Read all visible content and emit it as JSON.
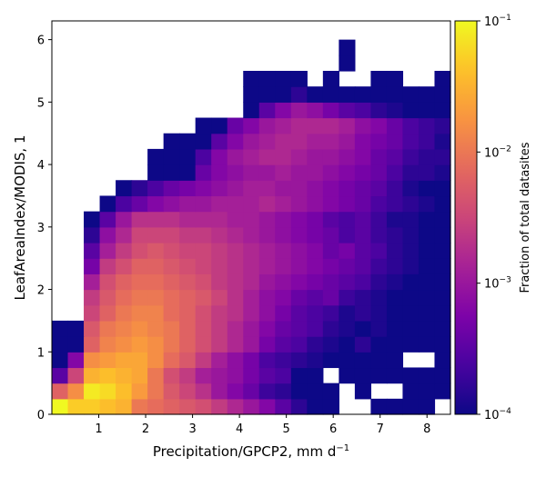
{
  "chart_data": {
    "type": "heatmap",
    "xlabel": "Precipitation/GPCP2,  mm d",
    "xlabel_superscript": "−1",
    "ylabel": "LeafAreaIndex/MODIS,  1",
    "xlim": [
      0,
      8.5
    ],
    "ylim": [
      0,
      6.3
    ],
    "x_ticks": [
      1,
      2,
      3,
      4,
      5,
      6,
      7,
      8
    ],
    "y_ticks": [
      0,
      1,
      2,
      3,
      4,
      5,
      6
    ],
    "x_bin_width": 0.34,
    "y_bin_height": 0.25,
    "colorbar": {
      "label": "Fraction of total datasites",
      "scale": "log",
      "colormap": "plasma",
      "range": [
        0.0001,
        0.1
      ],
      "ticks": [
        {
          "value": 0.0001,
          "base": "10",
          "exp": "−4"
        },
        {
          "value": 0.001,
          "base": "10",
          "exp": "−3"
        },
        {
          "value": 0.01,
          "base": "10",
          "exp": "−2"
        },
        {
          "value": 0.1,
          "base": "10",
          "exp": "−1"
        }
      ]
    },
    "rows_bottom_to_top": [
      [
        -1.0,
        -1.3,
        -1.3,
        -1.4,
        -1.5,
        -2.0,
        -2.1,
        -2.2,
        -2.3,
        -2.4,
        -2.6,
        -2.8,
        -3.0,
        -3.2,
        -3.5,
        -3.8,
        -4,
        -4,
        null,
        null,
        -4,
        -4,
        -4,
        -4,
        null
      ],
      [
        -2.2,
        -1.8,
        -1.1,
        -1.2,
        -1.4,
        -1.7,
        -2.0,
        -2.3,
        -2.5,
        -2.7,
        -3.0,
        -3.2,
        -3.4,
        -3.7,
        -3.8,
        -4,
        -4,
        -4,
        null,
        -4,
        null,
        null,
        -4,
        -4,
        -4
      ],
      [
        -3.5,
        -2.5,
        -1.5,
        -1.4,
        -1.5,
        -1.6,
        -2.0,
        -2.4,
        -2.6,
        -2.9,
        -3.0,
        -3.1,
        -3.3,
        -3.5,
        -3.6,
        -4,
        -4,
        null,
        -4,
        -4,
        -4,
        -4,
        -4,
        -4,
        -4
      ],
      [
        -4,
        -3.2,
        -1.8,
        -1.7,
        -1.6,
        -1.6,
        -1.8,
        -2.1,
        -2.3,
        -2.6,
        -2.9,
        -3.1,
        -3.3,
        -3.6,
        -3.7,
        -3.8,
        -3.9,
        -4,
        -4,
        -4,
        -4,
        -4,
        null,
        null,
        -4
      ],
      [
        -4,
        -4,
        -2.2,
        -1.9,
        -1.8,
        -1.7,
        -1.8,
        -2.0,
        -2.2,
        -2.4,
        -2.6,
        -2.8,
        -3.0,
        -3.3,
        -3.5,
        -3.6,
        -3.8,
        -3.9,
        -4,
        -3.8,
        -4,
        -4,
        -4,
        -4,
        -4
      ],
      [
        -4,
        -4,
        -2.3,
        -2.0,
        -1.9,
        -1.8,
        -1.9,
        -2.0,
        -2.2,
        -2.4,
        -2.6,
        -2.8,
        -3.0,
        -3.2,
        -3.4,
        -3.5,
        -3.6,
        -3.8,
        -3.9,
        -4,
        -3.9,
        -4,
        -4,
        -4,
        -4
      ],
      [
        null,
        null,
        -2.5,
        -2.2,
        -2.0,
        -1.9,
        -1.9,
        -2.1,
        -2.2,
        -2.4,
        -2.6,
        -2.7,
        -2.9,
        -3.1,
        -3.3,
        -3.5,
        -3.6,
        -3.7,
        -3.9,
        -3.8,
        -3.9,
        -4,
        -4,
        -4,
        -4
      ],
      [
        null,
        null,
        -2.6,
        -2.3,
        -2.1,
        -2.0,
        -2.0,
        -2.1,
        -2.2,
        -2.3,
        -2.5,
        -2.7,
        -2.9,
        -3.1,
        -3.2,
        -3.4,
        -3.5,
        -3.4,
        -3.7,
        -3.8,
        -3.9,
        -4,
        -4,
        -4,
        -4
      ],
      [
        null,
        null,
        -2.9,
        -2.4,
        -2.2,
        -2.1,
        -2.1,
        -2.2,
        -2.3,
        -2.4,
        -2.6,
        -2.7,
        -2.8,
        -3.0,
        -3.1,
        -3.2,
        -3.3,
        -3.4,
        -3.5,
        -3.6,
        -3.8,
        -3.9,
        -4,
        -4,
        -4
      ],
      [
        null,
        null,
        -3.3,
        -2.6,
        -2.4,
        -2.2,
        -2.2,
        -2.3,
        -2.4,
        -2.5,
        -2.6,
        -2.7,
        -2.8,
        -2.9,
        -3.0,
        -3.1,
        -3.2,
        -3.3,
        -3.4,
        -3.5,
        -3.7,
        -3.8,
        -3.9,
        -4,
        -4
      ],
      [
        null,
        null,
        -3.5,
        -2.9,
        -2.6,
        -2.4,
        -2.3,
        -2.4,
        -2.5,
        -2.5,
        -2.6,
        -2.7,
        -2.8,
        -2.9,
        -3.0,
        -3.1,
        -3.2,
        -3.4,
        -3.3,
        -3.5,
        -3.6,
        -3.8,
        -3.9,
        -4,
        -4
      ],
      [
        null,
        null,
        -3.8,
        -3.1,
        -2.8,
        -2.5,
        -2.5,
        -2.5,
        -2.6,
        -2.6,
        -2.7,
        -2.8,
        -2.9,
        -3.0,
        -3.1,
        -3.2,
        -3.3,
        -3.4,
        -3.6,
        -3.5,
        -3.7,
        -3.8,
        -3.9,
        -4,
        -4
      ],
      [
        null,
        null,
        -4,
        -3.5,
        -3.0,
        -2.7,
        -2.7,
        -2.7,
        -2.8,
        -2.8,
        -2.8,
        -2.9,
        -2.9,
        -3.0,
        -3.1,
        -3.2,
        -3.3,
        -3.5,
        -3.6,
        -3.5,
        -3.7,
        -3.9,
        -3.9,
        -4,
        -4
      ],
      [
        null,
        null,
        null,
        -4,
        -3.6,
        -3.4,
        -3.2,
        -3.1,
        -3.0,
        -3.0,
        -2.9,
        -2.9,
        -2.9,
        -2.8,
        -2.9,
        -3.0,
        -3.1,
        -3.2,
        -3.3,
        -3.4,
        -3.6,
        -3.7,
        -3.8,
        -3.9,
        -4
      ],
      [
        null,
        null,
        null,
        null,
        -4,
        -3.8,
        -3.6,
        -3.4,
        -3.3,
        -3.2,
        -3.1,
        -3.0,
        -2.9,
        -2.9,
        -3.0,
        -3.0,
        -3.1,
        -3.2,
        -3.3,
        -3.4,
        -3.5,
        -3.7,
        -3.9,
        -4,
        -4
      ],
      [
        null,
        null,
        null,
        null,
        null,
        null,
        -4,
        -4,
        -4,
        -3.4,
        -3.2,
        -3.1,
        -3.0,
        -3.0,
        -2.9,
        -3.0,
        -3.0,
        -3.1,
        -3.2,
        -3.3,
        -3.4,
        -3.6,
        -3.8,
        -3.8,
        -3.9
      ],
      [
        null,
        null,
        null,
        null,
        null,
        null,
        -4,
        -4,
        -4,
        -3.6,
        -3.2,
        -3.0,
        -2.9,
        -2.8,
        -2.8,
        -2.9,
        -3.0,
        -3.0,
        -3.1,
        -3.2,
        -3.4,
        -3.5,
        -3.7,
        -3.8,
        -3.8
      ],
      [
        null,
        null,
        null,
        null,
        null,
        null,
        null,
        -4,
        -4,
        -4,
        -3.5,
        -3.2,
        -3.0,
        -2.9,
        -2.8,
        -2.8,
        -2.9,
        -2.9,
        -3.0,
        -3.2,
        -3.3,
        -3.4,
        -3.6,
        -3.7,
        -3.9
      ],
      [
        null,
        null,
        null,
        null,
        null,
        null,
        null,
        null,
        null,
        -4,
        -4,
        -3.4,
        -3.2,
        -3.0,
        -2.9,
        -2.8,
        -2.8,
        -2.8,
        -2.9,
        -3.1,
        -3.2,
        -3.4,
        -3.6,
        -3.7,
        -3.8
      ],
      [
        null,
        null,
        null,
        null,
        null,
        null,
        null,
        null,
        null,
        null,
        null,
        null,
        -4,
        -3.5,
        -3.2,
        -3.0,
        -3.1,
        -3.3,
        -3.5,
        -3.6,
        -3.8,
        -3.9,
        -4,
        -4,
        -4
      ],
      [
        null,
        null,
        null,
        null,
        null,
        null,
        null,
        null,
        null,
        null,
        null,
        null,
        -4,
        -4,
        -4,
        -3.8,
        -4,
        -4,
        -4,
        -4,
        -4,
        -4,
        -4,
        -4,
        -4
      ],
      [
        null,
        null,
        null,
        null,
        null,
        null,
        null,
        null,
        null,
        null,
        null,
        null,
        -4,
        -4,
        -4,
        -4,
        null,
        -4,
        null,
        null,
        -4,
        -4,
        null,
        null,
        -4
      ],
      [
        null,
        null,
        null,
        null,
        null,
        null,
        null,
        null,
        null,
        null,
        null,
        null,
        null,
        null,
        null,
        null,
        null,
        null,
        -4,
        null,
        null,
        null,
        null,
        null,
        null
      ],
      [
        null,
        null,
        null,
        null,
        null,
        null,
        null,
        null,
        null,
        null,
        null,
        null,
        null,
        null,
        null,
        null,
        null,
        null,
        -4,
        null,
        null,
        null,
        null,
        null,
        null
      ]
    ]
  }
}
